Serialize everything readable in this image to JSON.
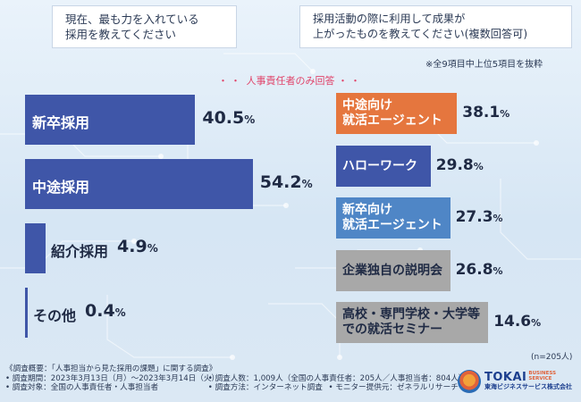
{
  "questions": {
    "left_line1": "現在、最も力を入れている",
    "left_line2": "採用を教えてください",
    "right_line1": "採用活動の際に利用して成果が",
    "right_line2": "上がったものを教えてください(複数回答可)"
  },
  "note_top": "※全9項目中上位5項目を抜粋",
  "respondents_only": "人事責任者のみ回答",
  "n_note": "(n=205人)",
  "chart_data": [
    {
      "type": "bar",
      "title": "現在、最も力を入れている採用を教えてください",
      "categories": [
        "新卒採用",
        "中途採用",
        "紹介採用",
        "その他"
      ],
      "values": [
        40.5,
        54.2,
        4.9,
        0.4
      ],
      "unit": "%",
      "value_text": [
        "40.5",
        "54.2",
        "4.9",
        "0.4"
      ],
      "colors": [
        "#3f56a8",
        "#3f56a8",
        "#3f56a8",
        "#3f56a8"
      ],
      "orientation": "horizontal"
    },
    {
      "type": "bar",
      "title": "採用活動の際に利用して成果が上がったものを教えてください(複数回答可)",
      "categories": [
        "中途向け就活エージェント",
        "ハローワーク",
        "新卒向け就活エージェント",
        "企業独自の説明会",
        "高校・専門学校・大学等での就活セミナー"
      ],
      "label_lines": [
        [
          "中途向け",
          "就活エージェント"
        ],
        [
          "ハローワーク"
        ],
        [
          "新卒向け",
          "就活エージェント"
        ],
        [
          "企業独自の説明会"
        ],
        [
          "高校・専門学校・大学等",
          "での就活セミナー"
        ]
      ],
      "values": [
        38.1,
        29.8,
        27.3,
        26.8,
        14.6
      ],
      "unit": "%",
      "value_text": [
        "38.1",
        "29.8",
        "27.3",
        "26.8",
        "14.6"
      ],
      "colors": [
        "#e5763e",
        "#3f56a8",
        "#4f86c6",
        "#a8a8a8",
        "#a8a8a8"
      ],
      "orientation": "horizontal"
    }
  ],
  "footer": {
    "line1": "《調査概要：「人事担当から見た採用の課題」に関する調査》",
    "period": "• 調査期間：2023年3月13日（月）～2023年3月14日（火）",
    "count": "• 調査人数：1,009人（全国の人事責任者：205人／人事担当者：804人）",
    "target": "• 調査対象：全国の人事責任者・人事担当者",
    "method": "• 調査方法：インターネット調査",
    "monitor": "• モニター提供元：ゼネラルリサーチ"
  },
  "logo": {
    "brand": "TOKAI",
    "bs1": "BUSINESS",
    "bs2": "SERVICE",
    "sub": "東海ビジネスサービス株式会社"
  }
}
